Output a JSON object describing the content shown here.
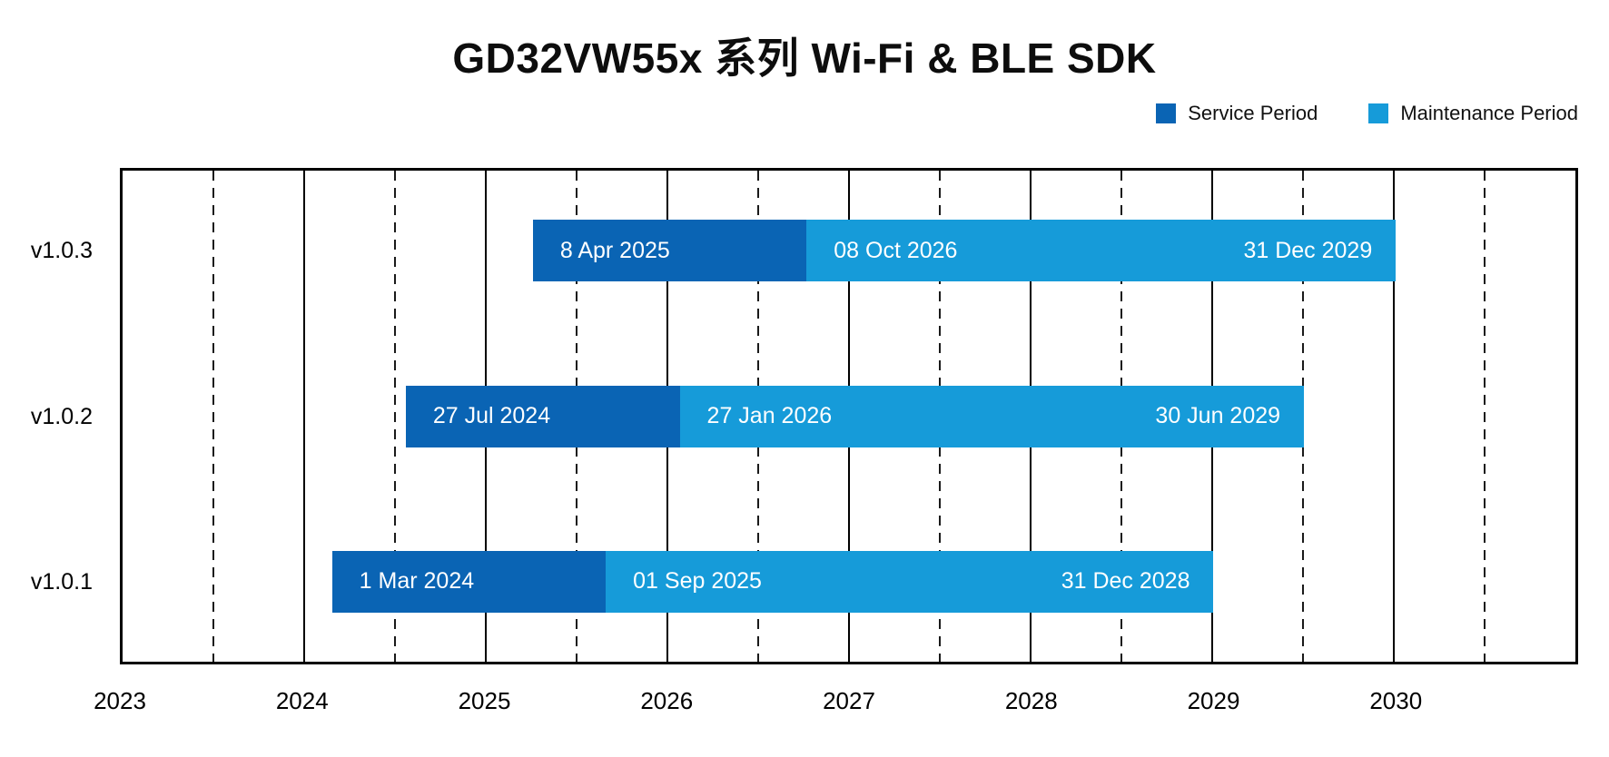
{
  "title": "GD32VW55x 系列 Wi-Fi & BLE SDK",
  "legend": {
    "items": [
      {
        "name": "service",
        "label": "Service Period",
        "color": "#0a64b4"
      },
      {
        "name": "maintenance",
        "label": "Maintenance Period",
        "color": "#169bd9"
      }
    ]
  },
  "chart_data": {
    "type": "gantt",
    "title": "GD32VW55x 系列 Wi-Fi & BLE SDK",
    "x_axis": {
      "tick_labels": [
        "2023",
        "2024",
        "2025",
        "2026",
        "2027",
        "2028",
        "2029",
        "2030"
      ],
      "range_start_year": 2023,
      "range_end_year": 2031,
      "solid_gridlines_at": "year starts",
      "dashed_gridlines_at": "mid-year"
    },
    "series_colors": {
      "service": "#0a64b4",
      "maintenance": "#169bd9"
    },
    "rows": [
      {
        "version": "v1.0.3",
        "service_start": {
          "label": "8 Apr 2025",
          "date": "2025-04-08"
        },
        "maintenance_start": {
          "label": "08 Oct 2026",
          "date": "2026-10-08"
        },
        "end": {
          "label": "31 Dec 2029",
          "date": "2029-12-31"
        }
      },
      {
        "version": "v1.0.2",
        "service_start": {
          "label": "27 Jul 2024",
          "date": "2024-07-27"
        },
        "maintenance_start": {
          "label": "27 Jan 2026",
          "date": "2026-01-27"
        },
        "end": {
          "label": "30 Jun 2029",
          "date": "2029-06-30"
        }
      },
      {
        "version": "v1.0.1",
        "service_start": {
          "label": "1 Mar 2024",
          "date": "2024-03-01"
        },
        "maintenance_start": {
          "label": "01 Sep 2025",
          "date": "2025-09-01"
        },
        "end": {
          "label": "31 Dec 2028",
          "date": "2028-12-31"
        }
      }
    ]
  }
}
